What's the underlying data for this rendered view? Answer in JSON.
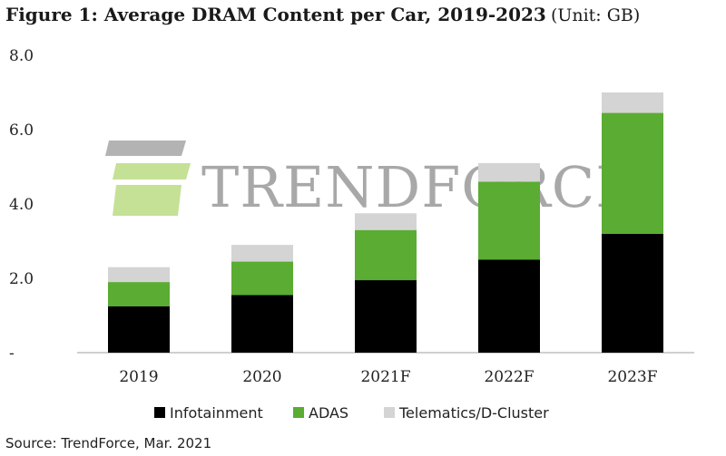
{
  "title": {
    "main": "Figure 1: Average DRAM Content per Car, 2019-2023",
    "unit": "(Unit: GB)"
  },
  "source": "Source: TrendForce, Mar. 2021",
  "watermark": {
    "text": "TrendForce"
  },
  "colors": {
    "infotainment": "#000000",
    "adas": "#5aac32",
    "telematics": "#d4d4d4",
    "axis": "#bfbfbf"
  },
  "chart_data": {
    "type": "bar",
    "stacked": true,
    "categories": [
      "2019",
      "2020",
      "2021F",
      "2022F",
      "2023F"
    ],
    "series": [
      {
        "name": "Infotainment",
        "values": [
          1.25,
          1.55,
          1.95,
          2.5,
          3.2
        ]
      },
      {
        "name": "ADAS",
        "values": [
          0.65,
          0.9,
          1.35,
          2.1,
          3.25
        ]
      },
      {
        "name": "Telematics/D-Cluster",
        "values": [
          0.4,
          0.45,
          0.45,
          0.5,
          0.55
        ]
      }
    ],
    "ylim": [
      0,
      8
    ],
    "yticks": [
      {
        "value": 0,
        "label": "-"
      },
      {
        "value": 2,
        "label": "2.0"
      },
      {
        "value": 4,
        "label": "4.0"
      },
      {
        "value": 6,
        "label": "6.0"
      },
      {
        "value": 8,
        "label": "8.0"
      }
    ],
    "grid": false,
    "legend": "bottom"
  }
}
